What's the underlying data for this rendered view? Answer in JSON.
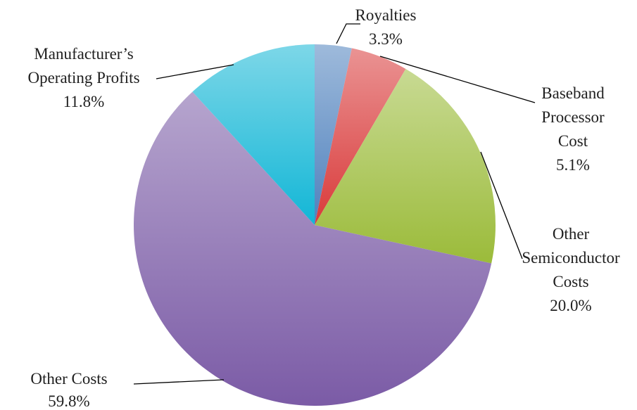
{
  "chart_data": {
    "type": "pie",
    "categories": [
      "Royalties",
      "Baseband Processor Cost",
      "Other Semiconductor Costs",
      "Other Costs",
      "Manufacturer’s Operating Profits"
    ],
    "values": [
      3.3,
      5.1,
      20.0,
      59.8,
      11.8
    ],
    "value_labels": [
      "3.3%",
      "5.1%",
      "20.0%",
      "59.8%",
      "11.8%"
    ],
    "colors": [
      "#4f81bd",
      "#d93a3a",
      "#9bbb3a",
      "#7b5ba6",
      "#12b6d6"
    ]
  }
}
